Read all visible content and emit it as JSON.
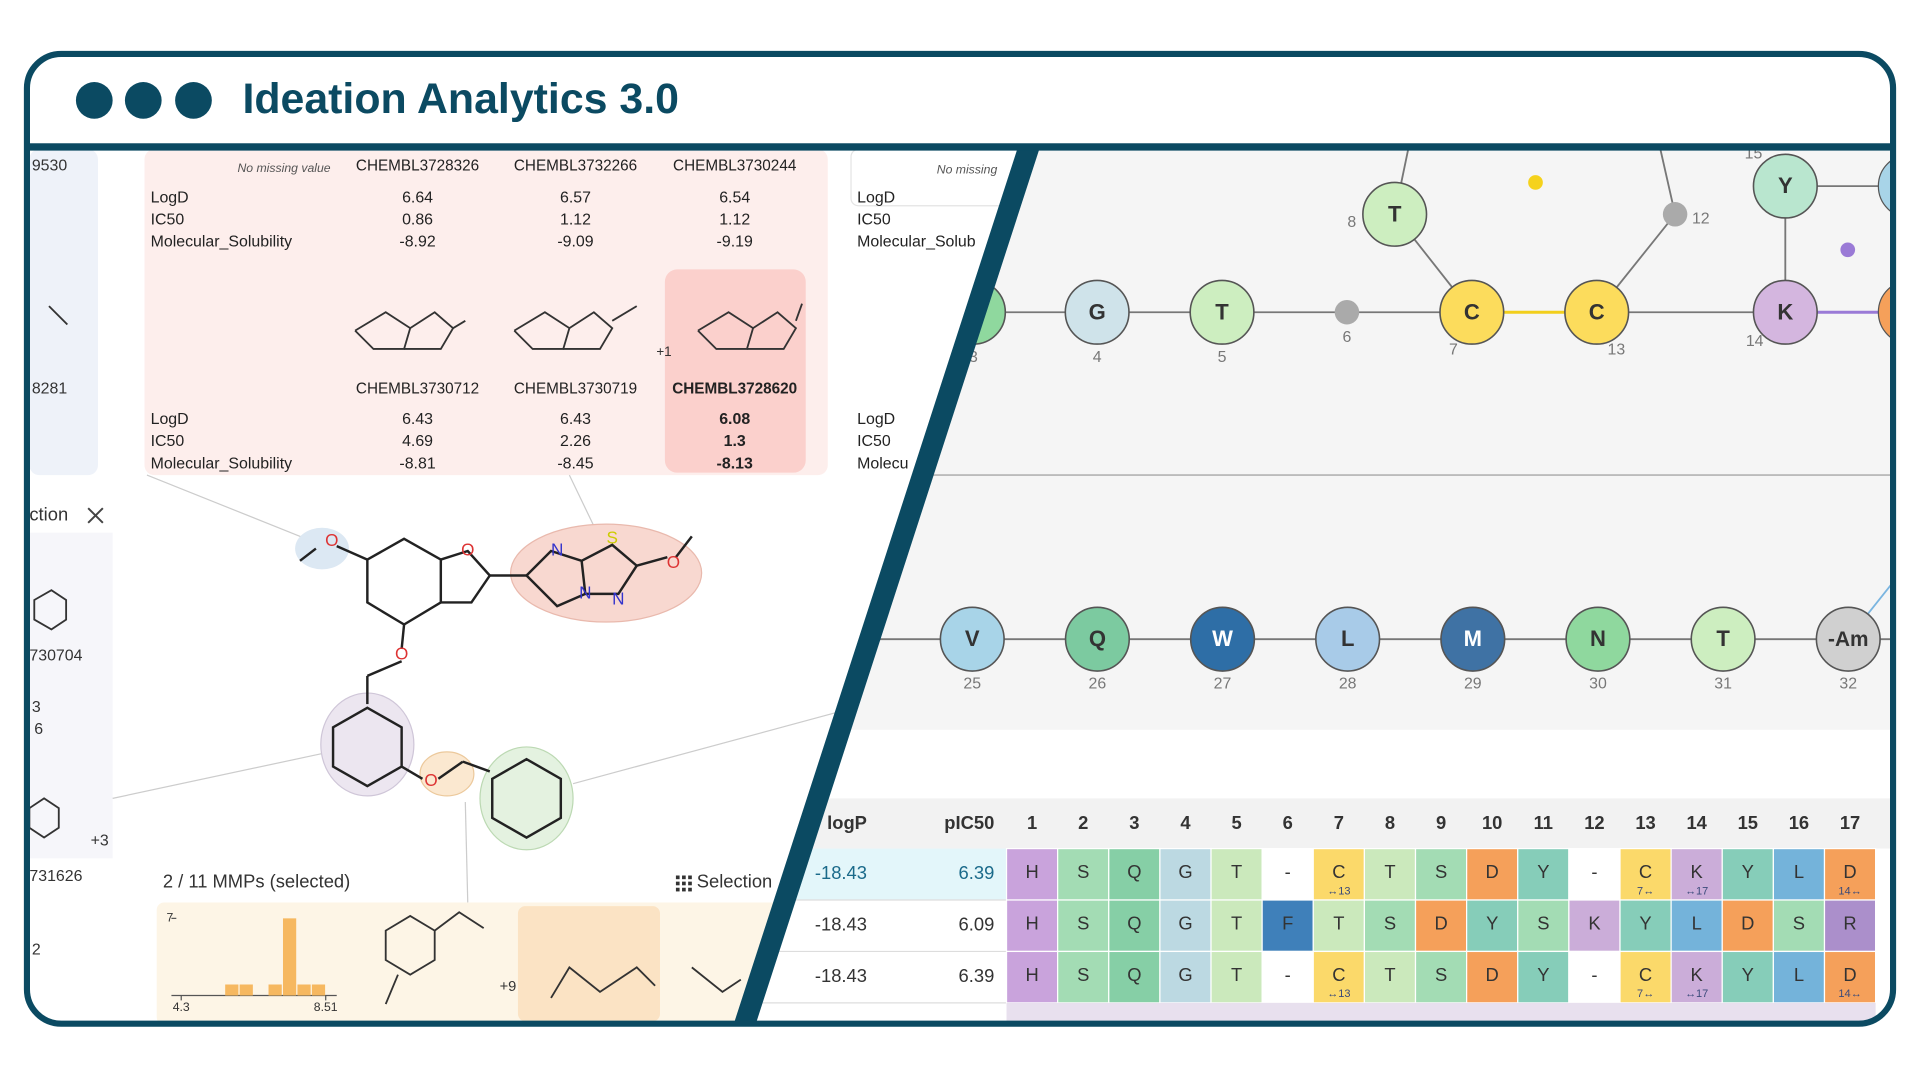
{
  "header": {
    "title": "Ideation Analytics 3.0"
  },
  "left_panel": {
    "fragments": [
      "9530",
      "8281",
      "ction",
      "730704",
      "3",
      "6",
      "731626",
      "+3",
      "2"
    ],
    "table_top": {
      "note": "No missing value",
      "columns": [
        "CHEMBL3728326",
        "CHEMBL3732266",
        "CHEMBL3730244"
      ],
      "rows": [
        {
          "label": "LogD",
          "values": [
            6.64,
            6.57,
            6.54
          ]
        },
        {
          "label": "IC50",
          "values": [
            0.86,
            1.12,
            1.12
          ]
        },
        {
          "label": "Molecular_Solubility",
          "values": [
            -8.92,
            -9.09,
            -9.19
          ]
        }
      ]
    },
    "table_bottom": {
      "more": "+1",
      "selected_column": 2,
      "columns": [
        "CHEMBL3730712",
        "CHEMBL3730719",
        "CHEMBL3728620"
      ],
      "rows": [
        {
          "label": "LogD",
          "values": [
            6.43,
            6.43,
            6.08
          ]
        },
        {
          "label": "IC50",
          "values": [
            4.69,
            2.26,
            1.3
          ]
        },
        {
          "label": "Molecular_Solubility",
          "values": [
            -8.81,
            -8.45,
            -8.13
          ]
        }
      ]
    },
    "side_table": {
      "note": "No missing",
      "rows": [
        "LogD",
        "IC50",
        "Molecular_Solub",
        "LogD",
        "IC50",
        "Molecu"
      ]
    },
    "mmp": {
      "status": "2 / 11 MMPs (selected)",
      "button": "Selection",
      "more": "+9",
      "histogram": {
        "color": "#f6b860",
        "counts": [
          0,
          0,
          0,
          1,
          1,
          0,
          1,
          7,
          1,
          1
        ],
        "xlim": [
          4.3,
          8.51
        ],
        "xticks": [
          4.3,
          8.51
        ],
        "ylim": [
          0,
          7
        ],
        "yticks": [
          7
        ]
      }
    }
  },
  "graph": {
    "row1": [
      {
        "index": 3,
        "color": "#8fd89e"
      },
      {
        "label": "G",
        "index": 4,
        "color": "#cfe3ea"
      },
      {
        "label": "T",
        "index": 5,
        "color": "#cdeec0"
      },
      {
        "index": 6,
        "color": "#aaaaaa"
      },
      {
        "label": "C",
        "index": 7,
        "color": "#fcdc5c"
      },
      {
        "label": "T",
        "index": 8,
        "color": "#cdeec0"
      },
      {
        "index": 12,
        "color": "#aaaaaa"
      },
      {
        "label": "C",
        "index": 13,
        "color": "#fcdc5c"
      },
      {
        "label": "K",
        "index": 14,
        "color": "#d4b6df"
      },
      {
        "label": "Y",
        "index": 15,
        "color": "#b9e6cf"
      }
    ],
    "row2": [
      {
        "label": "V",
        "index": 25,
        "color": "#a8d4e8"
      },
      {
        "label": "Q",
        "index": 26,
        "color": "#7ccaa0"
      },
      {
        "label": "W",
        "index": 27,
        "color": "#2e6ea6"
      },
      {
        "label": "L",
        "index": 28,
        "color": "#a8cbe8"
      },
      {
        "label": "M",
        "index": 29,
        "color": "#3f72a4"
      },
      {
        "label": "N",
        "index": 30,
        "color": "#8fd89e"
      },
      {
        "label": "T",
        "index": 31,
        "color": "#cdeec0"
      },
      {
        "label": "-Am",
        "index": 32,
        "color": "#d0d0d0"
      }
    ]
  },
  "table": {
    "logp_header": "logP",
    "pic50_header": "pIC50",
    "positions": [
      1,
      2,
      3,
      4,
      5,
      6,
      7,
      8,
      9,
      10,
      11,
      12,
      13,
      14,
      15,
      16,
      17
    ],
    "letter_colors": {
      "H": "#c9a3dc",
      "S": "#a3dcb4",
      "Q": "#86cfa6",
      "G": "#bcd9e2",
      "T": "#cbe9bc",
      "-": "#ffffff",
      "C": "#fbd96a",
      "D": "#f5a05a",
      "Y": "#86cdb9",
      "K": "#cbadd9",
      "L": "#74b3da",
      "F": "#3f80ba",
      "R": "#ab8fcb"
    },
    "rows": [
      {
        "logP": -18.43,
        "pIC50": 6.39,
        "residues": [
          "H",
          "S",
          "Q",
          "G",
          "T",
          "-",
          "C",
          "T",
          "S",
          "D",
          "Y",
          "-",
          "C",
          "K",
          "Y",
          "L",
          "D"
        ],
        "links": [
          null,
          null,
          null,
          null,
          null,
          null,
          "↔13",
          null,
          null,
          null,
          null,
          null,
          "7↔",
          "↔17",
          null,
          null,
          "14↔"
        ]
      },
      {
        "logP": -18.43,
        "pIC50": 6.09,
        "residues": [
          "H",
          "S",
          "Q",
          "G",
          "T",
          "F",
          "T",
          "S",
          "D",
          "Y",
          "S",
          "K",
          "Y",
          "L",
          "D",
          "S",
          "R"
        ],
        "links": [
          null,
          null,
          null,
          null,
          null,
          null,
          null,
          null,
          null,
          null,
          null,
          null,
          null,
          null,
          null,
          null,
          null
        ]
      },
      {
        "logP": -18.43,
        "pIC50": 6.39,
        "residues": [
          "H",
          "S",
          "Q",
          "G",
          "T",
          "-",
          "C",
          "T",
          "S",
          "D",
          "Y",
          "-",
          "C",
          "K",
          "Y",
          "L",
          "D"
        ],
        "links": [
          null,
          null,
          null,
          null,
          null,
          null,
          "↔13",
          null,
          null,
          null,
          null,
          null,
          "7↔",
          "↔17",
          null,
          null,
          "14↔"
        ]
      }
    ]
  }
}
